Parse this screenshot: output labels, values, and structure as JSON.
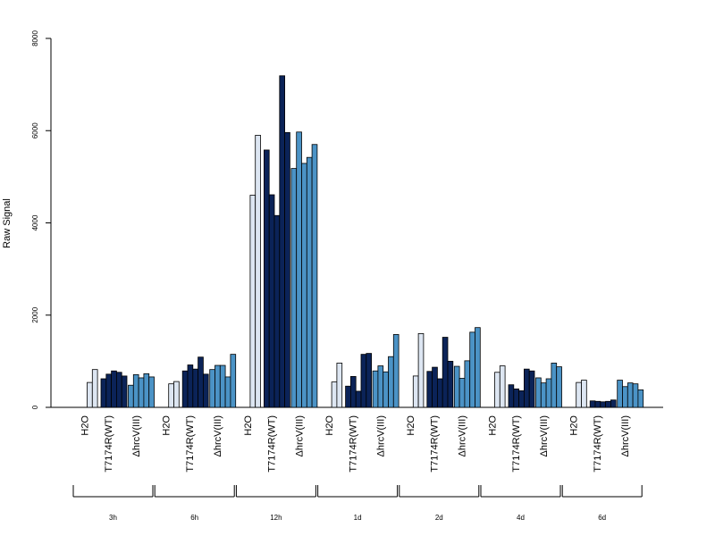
{
  "chart_data": {
    "type": "bar",
    "title": "",
    "xlabel": "",
    "ylabel": "Raw Signal",
    "ylim": [
      0,
      8000
    ],
    "yticks": [
      0,
      2000,
      4000,
      6000,
      8000
    ],
    "grid": false,
    "colors": {
      "H2O": "#dde6f2",
      "T7174R(WT)": "#0b2358",
      "ΔhrcV(III)": "#4b93c6"
    },
    "groups": [
      {
        "time": "3h",
        "conditions": [
          {
            "label": "H2O",
            "values": [
              540,
              820
            ]
          },
          {
            "label": "T7174R(WT)",
            "values": [
              620,
              720,
              790,
              760,
              680
            ]
          },
          {
            "label": "ΔhrcV(III)",
            "values": [
              480,
              710,
              640,
              730,
              660
            ]
          }
        ]
      },
      {
        "time": "6h",
        "conditions": [
          {
            "label": "H2O",
            "values": [
              510,
              560
            ]
          },
          {
            "label": "T7174R(WT)",
            "values": [
              790,
              920,
              830,
              1090,
              720
            ]
          },
          {
            "label": "ΔhrcV(III)",
            "values": [
              820,
              910,
              910,
              660,
              1150
            ]
          }
        ]
      },
      {
        "time": "12h",
        "conditions": [
          {
            "label": "H2O",
            "values": [
              4600,
              5900
            ]
          },
          {
            "label": "T7174R(WT)",
            "values": [
              5580,
              4610,
              4160,
              7190,
              5960
            ]
          },
          {
            "label": "ΔhrcV(III)",
            "values": [
              5180,
              5970,
              5290,
              5420,
              5700
            ]
          }
        ]
      },
      {
        "time": "1d",
        "conditions": [
          {
            "label": "H2O",
            "values": [
              550,
              960
            ]
          },
          {
            "label": "T7174R(WT)",
            "values": [
              460,
              670,
              350,
              1150,
              1170
            ]
          },
          {
            "label": "ΔhrcV(III)",
            "values": [
              790,
              900,
              770,
              1100,
              1580
            ]
          }
        ]
      },
      {
        "time": "2d",
        "conditions": [
          {
            "label": "H2O",
            "values": [
              680,
              1600
            ]
          },
          {
            "label": "T7174R(WT)",
            "values": [
              780,
              870,
              620,
              1520,
              1000
            ]
          },
          {
            "label": "ΔhrcV(III)",
            "values": [
              890,
              630,
              1010,
              1630,
              1730
            ]
          }
        ]
      },
      {
        "time": "4d",
        "conditions": [
          {
            "label": "H2O",
            "values": [
              760,
              900
            ]
          },
          {
            "label": "T7174R(WT)",
            "values": [
              490,
              400,
              360,
              830,
              790
            ]
          },
          {
            "label": "ΔhrcV(III)",
            "values": [
              640,
              530,
              620,
              960,
              880
            ]
          }
        ]
      },
      {
        "time": "6d",
        "conditions": [
          {
            "label": "H2O",
            "values": [
              540,
              590
            ]
          },
          {
            "label": "T7174R(WT)",
            "values": [
              140,
              130,
              120,
              130,
              160
            ]
          },
          {
            "label": "ΔhrcV(III)",
            "values": [
              590,
              450,
              530,
              510,
              380
            ]
          }
        ]
      }
    ]
  }
}
